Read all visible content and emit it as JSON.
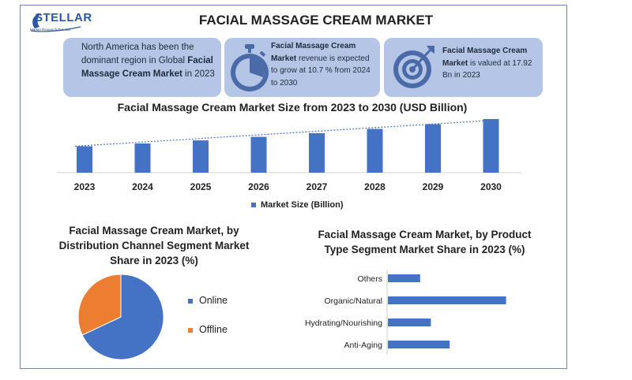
{
  "header": {
    "logo_text": "STELLAR",
    "logo_subtext": "Market Research Pvt. Ltd.",
    "title": "FACIAL MASSAGE CREAM MARKET"
  },
  "cards": [
    {
      "parts": [
        {
          "text": "North America has been the dominant region in Global ",
          "bold": false
        },
        {
          "text": "Facial Massage Cream Market",
          "bold": true
        },
        {
          "text": " in 2023",
          "bold": false
        }
      ]
    },
    {
      "icon": "stopwatch-icon",
      "parts": [
        {
          "text": "Facial Massage Cream Market",
          "bold": true
        },
        {
          "text": " revenue is expected to grow at 10.7 % from 2024 to 2030",
          "bold": false
        }
      ]
    },
    {
      "icon": "target-icon",
      "parts": [
        {
          "text": "Facial Massage Cream Market",
          "bold": true
        },
        {
          "text": " is valued at 17.92 Bn in 2023",
          "bold": false
        }
      ]
    }
  ],
  "colors": {
    "bar": "#4472c4",
    "online": "#4472c4",
    "offline": "#ed7d31",
    "card_bg": "#b4c5e6",
    "icon": "#4a6aa8"
  },
  "chart_data": [
    {
      "type": "bar",
      "title": "Facial Massage Cream Market Size from 2023 to 2030 (USD Billion)",
      "categories": [
        "2023",
        "2024",
        "2025",
        "2026",
        "2027",
        "2028",
        "2029",
        "2030"
      ],
      "series": [
        {
          "name": "Market Size (Billion)",
          "values": [
            17.92,
            19.8,
            21.9,
            24.3,
            26.8,
            29.7,
            32.9,
            36.4
          ]
        }
      ],
      "ylim": [
        0,
        38
      ],
      "trendline": "dotted",
      "legend": "bottom",
      "grid": false
    },
    {
      "type": "pie",
      "title": "Facial Massage Cream Market, by Distribution Channel Segment Market Share in 2023 (%)",
      "labels": [
        "Online",
        "Offline"
      ],
      "values": [
        68,
        32
      ],
      "legend": "right"
    },
    {
      "type": "bar",
      "orientation": "horizontal",
      "title": "Facial Massage Cream Market, by Product Type Segment Market Share in 2023 (%)",
      "categories": [
        "Others",
        "Organic/Natural",
        "Hydrating/Nourishing",
        "Anti-Aging"
      ],
      "values": [
        12,
        44,
        16,
        23
      ],
      "xlim": [
        0,
        50
      ]
    }
  ]
}
